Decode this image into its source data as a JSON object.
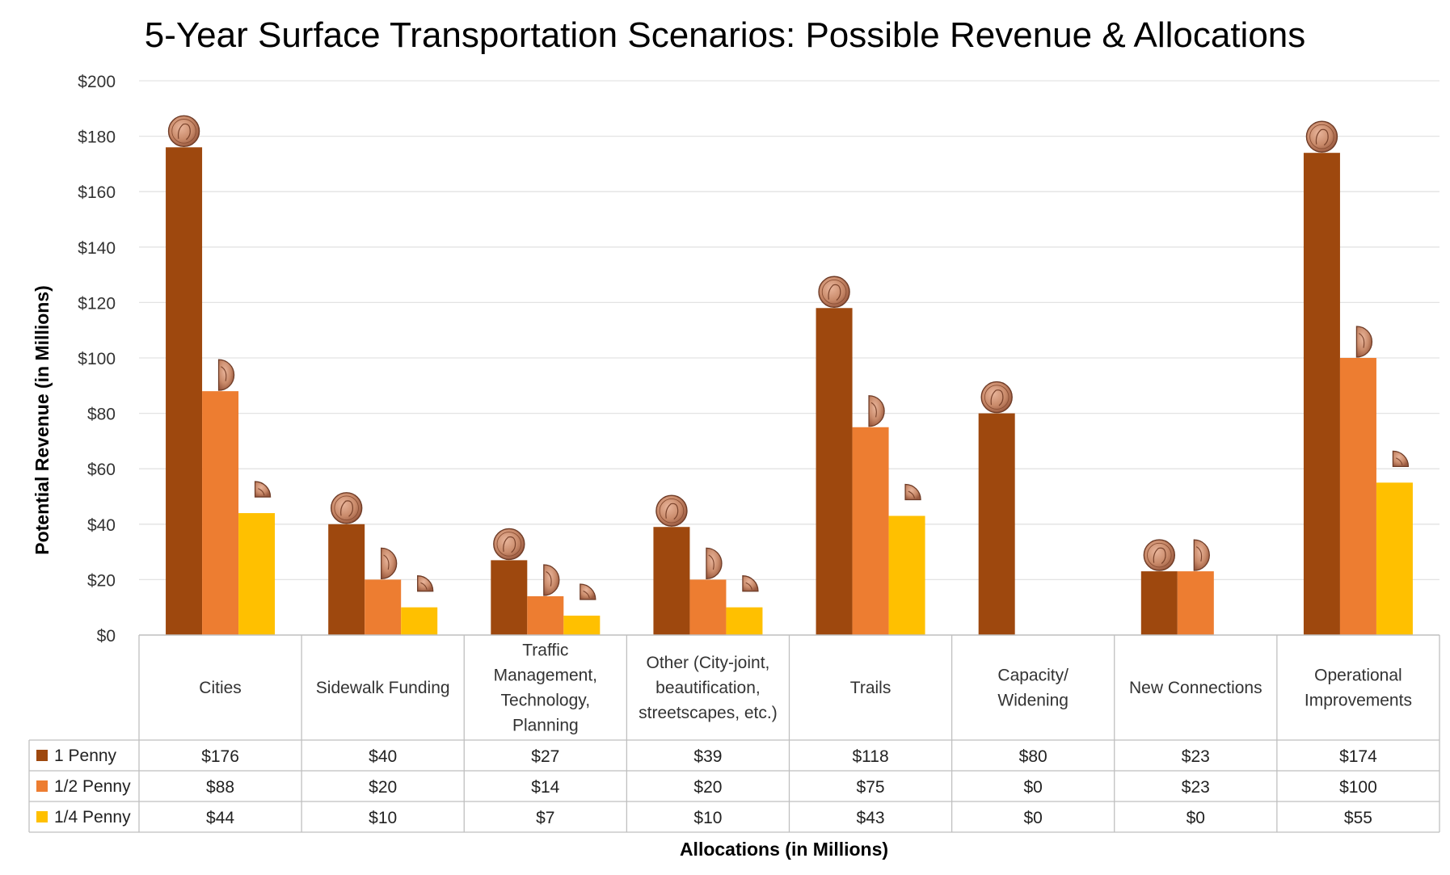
{
  "chart_data": {
    "type": "bar",
    "title": "5-Year Surface Transportation Scenarios: Possible Revenue & Allocations",
    "xlabel": "Allocations (in Millions)",
    "ylabel": "Potential Revenue (in Millions)",
    "ylim": [
      0,
      200
    ],
    "y_ticks": [
      "$0",
      "$20",
      "$40",
      "$60",
      "$80",
      "$100",
      "$120",
      "$140",
      "$160",
      "$180",
      "$200"
    ],
    "grid": true,
    "legend_placement": "data-table-left",
    "categories": [
      [
        "Cities"
      ],
      [
        "Sidewalk Funding"
      ],
      [
        "Traffic",
        "Management,",
        "Technology,",
        "Planning"
      ],
      [
        "Other (City-joint,",
        "beautification,",
        "streetscapes, etc.)"
      ],
      [
        "Trails"
      ],
      [
        "Capacity/",
        "Widening"
      ],
      [
        "New Connections"
      ],
      [
        "Operational",
        "Improvements"
      ]
    ],
    "series": [
      {
        "name": "1 Penny",
        "color": "#9E480E",
        "coin": "full",
        "values": [
          176,
          40,
          27,
          39,
          118,
          80,
          23,
          174
        ],
        "labels": [
          "$176",
          "$40",
          "$27",
          "$39",
          "$118",
          "$80",
          "$23",
          "$174"
        ]
      },
      {
        "name": "1/2 Penny",
        "color": "#ED7D31",
        "coin": "half",
        "values": [
          88,
          20,
          14,
          20,
          75,
          0,
          23,
          100
        ],
        "labels": [
          "$88",
          "$20",
          "$14",
          "$20",
          "$75",
          "$0",
          "$23",
          "$100"
        ]
      },
      {
        "name": "1/4 Penny",
        "color": "#FFC000",
        "coin": "quarter",
        "values": [
          44,
          10,
          7,
          10,
          43,
          0,
          0,
          55
        ],
        "labels": [
          "$44",
          "$10",
          "$7",
          "$10",
          "$43",
          "$0",
          "$0",
          "$55"
        ]
      }
    ]
  }
}
